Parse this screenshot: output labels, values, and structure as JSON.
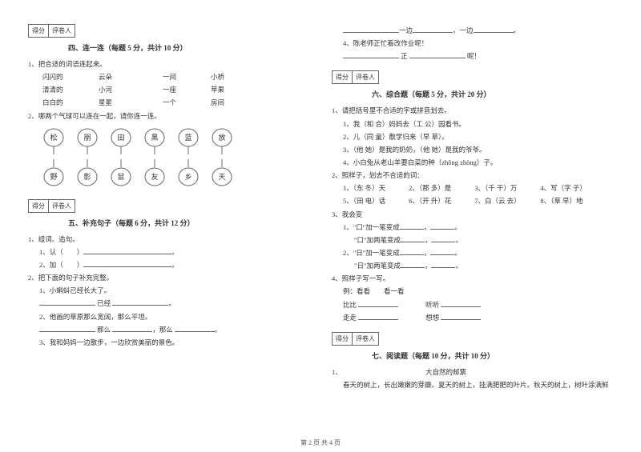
{
  "footer": "第 2 页 共 4 页",
  "scoreLabels": {
    "score": "得分",
    "grader": "评卷人"
  },
  "left": {
    "sec4": {
      "title": "四、连一连（每题 5 分，共计 10 分）",
      "q1": "1、把合适的词语连起来。",
      "match": [
        {
          "a": "闪闪的",
          "b": "云朵",
          "c": "一间",
          "d": "小桥"
        },
        {
          "a": "清清的",
          "b": "小河",
          "c": "一座",
          "d": "苹果"
        },
        {
          "a": "白白的",
          "b": "星星",
          "c": "一个",
          "d": "房间"
        }
      ],
      "q2": "2、哪两个气球可以连在一起，请你连一连。",
      "balloonsTop": [
        "松",
        "朋",
        "田",
        "黑",
        "蓝",
        "放"
      ],
      "balloonsBottom": [
        "野",
        "影",
        "鼠",
        "友",
        "乡",
        "天"
      ]
    },
    "sec5": {
      "title": "五、补充句子（每题 6 分，共计 12 分）",
      "q1": "1、组词、造句。",
      "q1a": "1、认（　　）",
      "q1b": "2、加（　　）",
      "q2": "2、把下面的句子补充完整。",
      "q2_1": "1、小蝌蚪已经长大了。",
      "q2_1b": "已经",
      "q2_2": "2、他画的草原那么宽阔，那么平坦。",
      "q2_2a": "那么",
      "q2_2b": "那么",
      "q2_3": "3、我和妈妈一边散步，一边欣赏美丽的景色。"
    }
  },
  "right": {
    "cont": {
      "line1a": "一边",
      "line1b": "，一边",
      "q4": "4、陈老师正忙着改作业呢！",
      "q4a": "正",
      "q4b": "呢！"
    },
    "sec6": {
      "title": "六、综合题（每题 5 分，共计 20 分）",
      "q1": "1、请把括号里不合适的字或拼音划去。",
      "q1_1": "1、我（和 合）妈妈去（工 公）园看书。",
      "q1_2": "2、儿（同 童）散学归来（早 草）。",
      "q1_3": "3、（他 她）是我的奶奶，（他 她）是我的爷爷。",
      "q1_4": "4、小白兔从老山羊要白菜的种（zhǒng  zhòng）子。",
      "q2": "2、照样子，划去不合适的词：",
      "q2_row1": {
        "a": "1、（东 冬）天",
        "b": "2、（那 多）是",
        "c": "3、（千 干）万",
        "d": "4、写（字 子）"
      },
      "q2_row2": {
        "a": "5、（田 电）话",
        "b": "6、（开 升）花",
        "c": "7、白（云 去）",
        "d": "8、（草 早）地"
      },
      "q3": "3、我会变",
      "q3_1": "1、\"口\"加一笔变成",
      "q3_2": "\"口\"加两笔变成",
      "q3_3": "2、\"日\"加一笔变成",
      "q3_4": "\"日\"加两笔变成",
      "q4": "4、照样子写一写。",
      "q4ex": "例：看看　　看一看",
      "q4a": "比比",
      "q4b": "听听",
      "q4c": "走走",
      "q4d": "想想"
    },
    "sec7": {
      "title": "七、阅读题（每题 10 分，共计 10 分）",
      "q1": "1、",
      "q1title": "大自然的邮票",
      "q1text": "春天的树上，长出嫩嫩的芽瓣。夏天的树上，挂满肥肥的叶片。秋天的树上，树叶涂满鲜"
    }
  }
}
